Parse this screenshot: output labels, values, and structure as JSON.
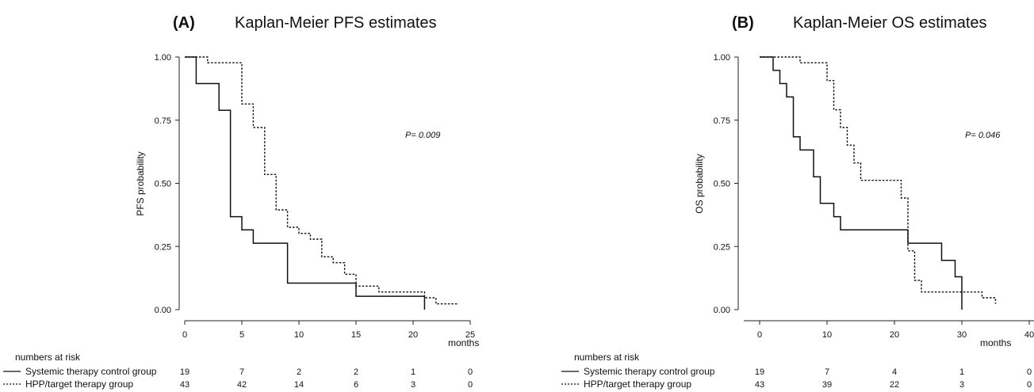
{
  "figure": {
    "risk_heading": "numbers at risk",
    "legend": [
      {
        "label": "Systemic therapy control group",
        "style": "solid"
      },
      {
        "label": "HPP/target therapy group",
        "style": "dotted"
      }
    ]
  },
  "chart_data": [
    {
      "type": "line",
      "step": true,
      "panel_label": "(A)",
      "title": "Kaplan-Meier PFS estimates",
      "ylabel": "PFS probability",
      "xlabel": "months",
      "xlim": [
        0,
        25
      ],
      "ylim": [
        0,
        1
      ],
      "xticks": [
        "0",
        "5",
        "10",
        "15",
        "20",
        "25"
      ],
      "yticks": [
        "0.00",
        "0.25",
        "0.50",
        "0.75",
        "1.00"
      ],
      "annotation": "P= 0.009",
      "series": [
        {
          "name": "Systemic therapy control group",
          "style": "solid",
          "x": [
            0,
            1,
            3,
            4,
            5,
            6,
            9,
            15,
            21,
            21
          ],
          "y": [
            1.0,
            0.895,
            0.789,
            0.368,
            0.316,
            0.263,
            0.105,
            0.053,
            0.053,
            0.0
          ]
        },
        {
          "name": "HPP/target therapy group",
          "style": "dotted",
          "x": [
            0,
            2,
            5,
            6,
            7,
            8,
            9,
            10,
            11,
            12,
            13,
            14,
            15,
            17,
            21,
            22,
            24
          ],
          "y": [
            1.0,
            0.977,
            0.814,
            0.721,
            0.535,
            0.395,
            0.326,
            0.302,
            0.279,
            0.209,
            0.186,
            0.14,
            0.093,
            0.07,
            0.047,
            0.023,
            0.023
          ]
        }
      ],
      "risk_table": {
        "rows": [
          {
            "label": "Systemic therapy control group",
            "values": [
              "19",
              "7",
              "2",
              "2",
              "1",
              "0"
            ]
          },
          {
            "label": "HPP/target therapy group",
            "values": [
              "43",
              "42",
              "14",
              "6",
              "3",
              "0"
            ]
          }
        ]
      }
    },
    {
      "type": "line",
      "step": true,
      "panel_label": "(B)",
      "title": "Kaplan-Meier OS estimates",
      "ylabel": "OS probability",
      "xlabel": "months",
      "xlim": [
        0,
        40
      ],
      "ylim": [
        0,
        1
      ],
      "xticks": [
        "0",
        "10",
        "20",
        "30",
        "40"
      ],
      "yticks": [
        "0.00",
        "0.25",
        "0.50",
        "0.75",
        "1.00"
      ],
      "annotation": "P= 0.046",
      "series": [
        {
          "name": "Systemic therapy control group",
          "style": "solid",
          "x": [
            0,
            2,
            3,
            4,
            5,
            6,
            8,
            9,
            11,
            12,
            22,
            27,
            29,
            30,
            30
          ],
          "y": [
            1.0,
            0.947,
            0.895,
            0.842,
            0.684,
            0.632,
            0.526,
            0.421,
            0.368,
            0.316,
            0.263,
            0.195,
            0.13,
            0.065,
            0.0
          ]
        },
        {
          "name": "HPP/target therapy group",
          "style": "dotted",
          "x": [
            0,
            6,
            10,
            11,
            12,
            13,
            14,
            15,
            21,
            22,
            23,
            24,
            30,
            33,
            35
          ],
          "y": [
            1.0,
            0.977,
            0.907,
            0.791,
            0.721,
            0.651,
            0.581,
            0.512,
            0.442,
            0.233,
            0.116,
            0.07,
            0.07,
            0.047,
            0.023
          ]
        }
      ],
      "risk_table": {
        "rows": [
          {
            "label": "Systemic therapy control group",
            "values": [
              "19",
              "7",
              "4",
              "1",
              "0"
            ]
          },
          {
            "label": "HPP/target therapy group",
            "values": [
              "43",
              "39",
              "22",
              "3",
              "0"
            ]
          }
        ]
      }
    }
  ]
}
